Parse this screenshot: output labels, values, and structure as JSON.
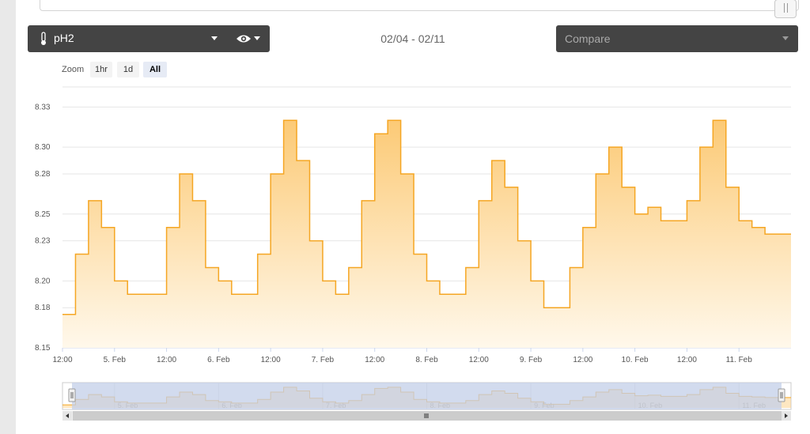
{
  "controls": {
    "sensor_label": "pH2",
    "date_range": "02/04 - 02/11",
    "compare_placeholder": "Compare",
    "zoom_label": "Zoom",
    "zoom_options": [
      "1hr",
      "1d",
      "All"
    ],
    "zoom_selected": "All"
  },
  "icons": {
    "sensor": "thermometer-icon",
    "visibility": "eye-icon",
    "dropdown": "caret-down-icon"
  },
  "colors": {
    "series_line": "#f5a623",
    "series_fill_top": "#fcca76",
    "series_fill_bottom": "#fff8eb",
    "navigator_mask": "#c3cfe8",
    "control_bg": "#444444"
  },
  "chart_data": {
    "type": "area",
    "title": "",
    "xlabel": "",
    "ylabel": "",
    "step": true,
    "grid": true,
    "ylim": [
      8.15,
      8.345
    ],
    "y_tick_labels": [
      "8.15",
      "8.18",
      "8.20",
      "8.23",
      "8.25",
      "8.28",
      "8.30",
      "8.33"
    ],
    "x_tick_labels": [
      "12:00",
      "5. Feb",
      "12:00",
      "6. Feb",
      "12:00",
      "7. Feb",
      "12:00",
      "8. Feb",
      "12:00",
      "9. Feb",
      "12:00",
      "10. Feb",
      "12:00",
      "11. Feb"
    ],
    "navigator_tick_labels": [
      "5. Feb",
      "6. Feb",
      "7. Feb",
      "8. Feb",
      "9. Feb",
      "10. Feb",
      "11. Feb"
    ],
    "series": [
      {
        "x": [
          "02/04 12:00",
          "02/04 15:00",
          "02/04 18:00",
          "02/04 21:00",
          "02/05 00:00",
          "02/05 03:00",
          "02/05 06:00",
          "02/05 09:00",
          "02/05 12:00",
          "02/05 15:00",
          "02/05 18:00",
          "02/05 21:00",
          "02/06 00:00",
          "02/06 03:00",
          "02/06 06:00",
          "02/06 09:00",
          "02/06 12:00",
          "02/06 15:00",
          "02/06 18:00",
          "02/06 21:00",
          "02/07 00:00",
          "02/07 03:00",
          "02/07 06:00",
          "02/07 09:00",
          "02/07 12:00",
          "02/07 15:00",
          "02/07 18:00",
          "02/07 21:00",
          "02/08 00:00",
          "02/08 03:00",
          "02/08 06:00",
          "02/08 09:00",
          "02/08 12:00",
          "02/08 15:00",
          "02/08 18:00",
          "02/08 21:00",
          "02/09 00:00",
          "02/09 03:00",
          "02/09 06:00",
          "02/09 09:00",
          "02/09 12:00",
          "02/09 15:00",
          "02/09 18:00",
          "02/09 21:00",
          "02/10 00:00",
          "02/10 03:00",
          "02/10 06:00",
          "02/10 09:00",
          "02/10 12:00",
          "02/10 15:00",
          "02/10 18:00",
          "02/10 21:00",
          "02/11 00:00",
          "02/11 03:00",
          "02/11 06:00",
          "02/11 09:00"
        ],
        "y": [
          8.175,
          8.22,
          8.26,
          8.24,
          8.2,
          8.19,
          8.19,
          8.19,
          8.24,
          8.28,
          8.26,
          8.21,
          8.2,
          8.19,
          8.19,
          8.22,
          8.28,
          8.32,
          8.29,
          8.23,
          8.2,
          8.19,
          8.21,
          8.26,
          8.31,
          8.32,
          8.28,
          8.22,
          8.2,
          8.19,
          8.19,
          8.21,
          8.26,
          8.29,
          8.27,
          8.23,
          8.2,
          8.18,
          8.18,
          8.21,
          8.24,
          8.28,
          8.3,
          8.27,
          8.25,
          8.255,
          8.245,
          8.245,
          8.26,
          8.3,
          8.32,
          8.27,
          8.245,
          8.24,
          8.235,
          8.235
        ]
      }
    ]
  }
}
